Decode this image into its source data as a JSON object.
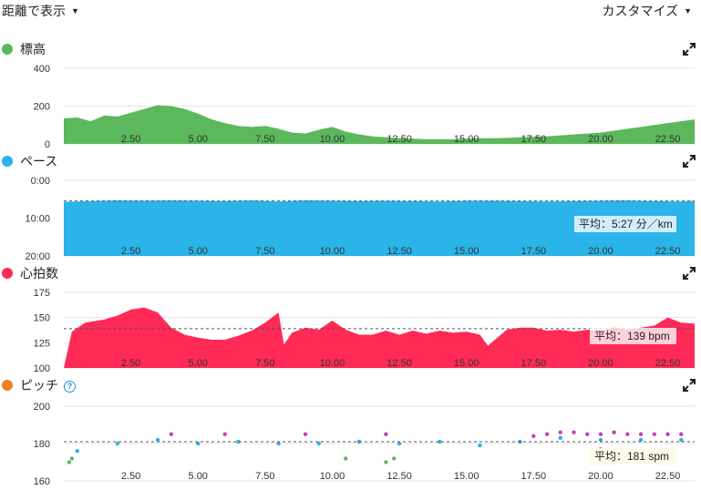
{
  "header": {
    "view_select_label": "距離で表示",
    "customize_label": "カスタマイズ"
  },
  "x_axis_ticks": [
    "2.50",
    "5.00",
    "7.50",
    "10.00",
    "12.50",
    "15.00",
    "17.50",
    "20.00",
    "22.50"
  ],
  "chart_data": [
    {
      "type": "area",
      "title": "標高",
      "color": "#5cb85c",
      "x_range": [
        0,
        23.5
      ],
      "ylim": [
        0,
        400
      ],
      "yticks": [
        "400",
        "200",
        "0"
      ],
      "x": [
        0,
        0.5,
        1.0,
        1.5,
        2.0,
        2.5,
        3.0,
        3.5,
        4.0,
        4.5,
        5.0,
        5.5,
        6.0,
        6.5,
        7.0,
        7.5,
        8.0,
        8.5,
        9.0,
        9.5,
        10.0,
        10.5,
        11.0,
        11.5,
        12.0,
        12.5,
        13.0,
        13.5,
        14.0,
        14.5,
        15.0,
        15.5,
        16.0,
        16.5,
        17.0,
        17.5,
        18.0,
        18.5,
        19.0,
        19.5,
        20.0,
        20.5,
        21.0,
        21.5,
        22.0,
        22.5,
        23.0,
        23.5
      ],
      "values": [
        135,
        140,
        120,
        150,
        145,
        165,
        185,
        205,
        200,
        185,
        160,
        130,
        110,
        95,
        90,
        95,
        80,
        60,
        55,
        75,
        90,
        65,
        50,
        40,
        35,
        30,
        28,
        25,
        25,
        25,
        28,
        30,
        30,
        32,
        35,
        38,
        40,
        45,
        50,
        55,
        60,
        70,
        80,
        90,
        100,
        110,
        120,
        130
      ]
    },
    {
      "type": "area",
      "title": "ペース",
      "color": "#2ab4e8",
      "x_range": [
        0,
        23.5
      ],
      "ylim": [
        20,
        0
      ],
      "yticks": [
        "0:00",
        "10:00",
        "20:00"
      ],
      "average_label": "平均：5:27 分／km",
      "average": 5.45,
      "x": [
        0,
        1,
        2,
        3,
        4,
        5,
        6,
        7,
        8,
        9,
        10,
        11,
        12,
        13,
        14,
        15,
        16,
        17,
        18,
        19,
        20,
        21,
        22,
        23,
        23.5
      ],
      "values": [
        5.7,
        5.5,
        5.3,
        5.4,
        5.3,
        5.4,
        5.5,
        5.3,
        5.6,
        5.3,
        5.4,
        5.5,
        5.4,
        5.5,
        5.6,
        5.4,
        5.4,
        5.5,
        5.6,
        5.5,
        5.4,
        5.3,
        5.5,
        5.6,
        5.4
      ]
    },
    {
      "type": "area",
      "title": "心拍数",
      "color": "#ff2a55",
      "x_range": [
        0,
        23.5
      ],
      "ylim": [
        100,
        175
      ],
      "yticks": [
        "175",
        "150",
        "125",
        "100"
      ],
      "average_label": "平均：139 bpm",
      "average": 139,
      "x": [
        0,
        0.3,
        0.8,
        1.5,
        2.0,
        2.5,
        3.0,
        3.5,
        4.0,
        4.5,
        5.0,
        5.5,
        6.0,
        6.5,
        7.0,
        7.5,
        8.0,
        8.2,
        8.5,
        9.0,
        9.5,
        10.0,
        10.5,
        11.0,
        11.5,
        12.0,
        12.5,
        13.0,
        13.5,
        14.0,
        14.5,
        15.0,
        15.5,
        15.8,
        16.5,
        17.0,
        17.5,
        18.0,
        18.5,
        19.0,
        19.5,
        20.0,
        20.5,
        21.0,
        21.5,
        22.0,
        22.5,
        23.0,
        23.5
      ],
      "values": [
        100,
        136,
        145,
        148,
        152,
        158,
        160,
        155,
        140,
        133,
        130,
        128,
        128,
        132,
        137,
        145,
        155,
        123,
        135,
        140,
        138,
        147,
        138,
        133,
        133,
        137,
        133,
        137,
        134,
        137,
        135,
        136,
        133,
        122,
        138,
        140,
        140,
        137,
        138,
        136,
        138,
        137,
        140,
        138,
        140,
        142,
        150,
        145,
        144
      ]
    },
    {
      "type": "scatter",
      "title": "ピッチ",
      "x_range": [
        0,
        23.5
      ],
      "ylim": [
        160,
        200
      ],
      "yticks": [
        "200",
        "180",
        "160"
      ],
      "average_label": "平均：181 spm",
      "average": 181,
      "series": [
        {
          "color": "#2ab4e8",
          "x": [
            0.5,
            2.0,
            3.5,
            5.0,
            6.5,
            8.0,
            9.5,
            11.0,
            12.5,
            14.0,
            15.5,
            17.0,
            18.5,
            20.0,
            21.5,
            23.0
          ],
          "values": [
            176,
            180,
            182,
            180,
            181,
            180,
            180,
            181,
            180,
            181,
            179,
            181,
            183,
            182,
            182,
            182
          ]
        },
        {
          "color": "#c23fc0",
          "x": [
            4.0,
            6.0,
            9.0,
            12.0,
            17.5,
            18.0,
            18.5,
            19.0,
            19.5,
            20.0,
            20.5,
            21.0,
            21.5,
            22.0,
            22.5,
            23.0
          ],
          "values": [
            185,
            185,
            185,
            185,
            184,
            185,
            186,
            186,
            185,
            185,
            186,
            185,
            185,
            185,
            185,
            185
          ]
        },
        {
          "color": "#5cb85c",
          "x": [
            0.2,
            0.3,
            10.5,
            12.0,
            12.3,
            20.0
          ],
          "values": [
            170,
            172,
            172,
            170,
            172,
            177
          ]
        }
      ]
    }
  ]
}
